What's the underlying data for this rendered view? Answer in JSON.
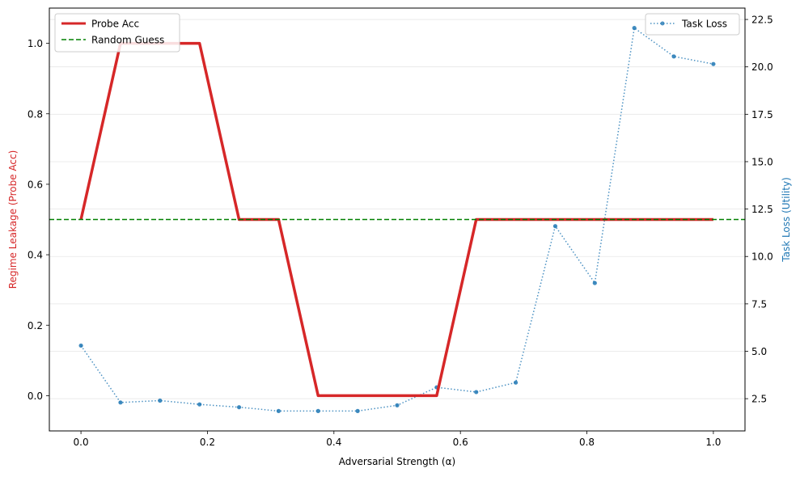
{
  "chart_data": {
    "type": "line",
    "xlabel": "Adversarial Strength (α)",
    "ylabel_left": "Regime Leakage (Probe Acc)",
    "ylabel_right": "Task Loss (Utility)",
    "xlim": [
      -0.05,
      1.05
    ],
    "ylim_left": [
      -0.1,
      1.1
    ],
    "ylim_right": [
      0.8,
      23.1
    ],
    "x_ticks": [
      0.0,
      0.2,
      0.4,
      0.6,
      0.8,
      1.0
    ],
    "x_tick_labels": [
      "0.0",
      "0.2",
      "0.4",
      "0.6",
      "0.8",
      "1.0"
    ],
    "y_left_ticks": [
      0.0,
      0.2,
      0.4,
      0.6,
      0.8,
      1.0
    ],
    "y_left_tick_labels": [
      "0.0",
      "0.2",
      "0.4",
      "0.6",
      "0.8",
      "1.0"
    ],
    "y_right_ticks": [
      2.5,
      5.0,
      7.5,
      10.0,
      12.5,
      15.0,
      17.5,
      20.0,
      22.5
    ],
    "y_right_tick_labels": [
      "2.5",
      "5.0",
      "7.5",
      "10.0",
      "12.5",
      "15.0",
      "17.5",
      "20.0",
      "22.5"
    ],
    "grid": "horizontal",
    "series": [
      {
        "name": "Probe Acc",
        "axis": "left",
        "color": "#d62728",
        "style": "solid",
        "x": [
          0.0,
          0.0625,
          0.125,
          0.1875,
          0.25,
          0.3125,
          0.375,
          0.4375,
          0.5,
          0.5625,
          0.625,
          0.6875,
          0.75,
          0.8125,
          0.875,
          0.9375,
          1.0
        ],
        "values": [
          0.5,
          1.0,
          1.0,
          1.0,
          0.5,
          0.5,
          0.0,
          0.0,
          0.0,
          0.0,
          0.5,
          0.5,
          0.5,
          0.5,
          0.5,
          0.5,
          0.5
        ]
      },
      {
        "name": "Random Guess",
        "axis": "left",
        "color": "#008000",
        "style": "dashed",
        "y": 0.5
      },
      {
        "name": "Task Loss",
        "axis": "right",
        "color": "#1f77b4",
        "style": "dotted",
        "marker": "circle",
        "x": [
          0.0,
          0.0625,
          0.125,
          0.1875,
          0.25,
          0.3125,
          0.375,
          0.4375,
          0.5,
          0.5625,
          0.625,
          0.6875,
          0.75,
          0.8125,
          0.875,
          0.9375,
          1.0
        ],
        "values": [
          5.3,
          2.3,
          2.4,
          2.2,
          2.05,
          1.85,
          1.85,
          1.85,
          2.15,
          3.1,
          2.85,
          3.35,
          11.6,
          8.6,
          22.05,
          20.55,
          20.15
        ]
      }
    ],
    "legend_left": {
      "placement": "top-left",
      "entries": [
        "Probe Acc",
        "Random Guess"
      ]
    },
    "legend_right": {
      "placement": "top-right",
      "entries": [
        "Task Loss"
      ]
    }
  }
}
